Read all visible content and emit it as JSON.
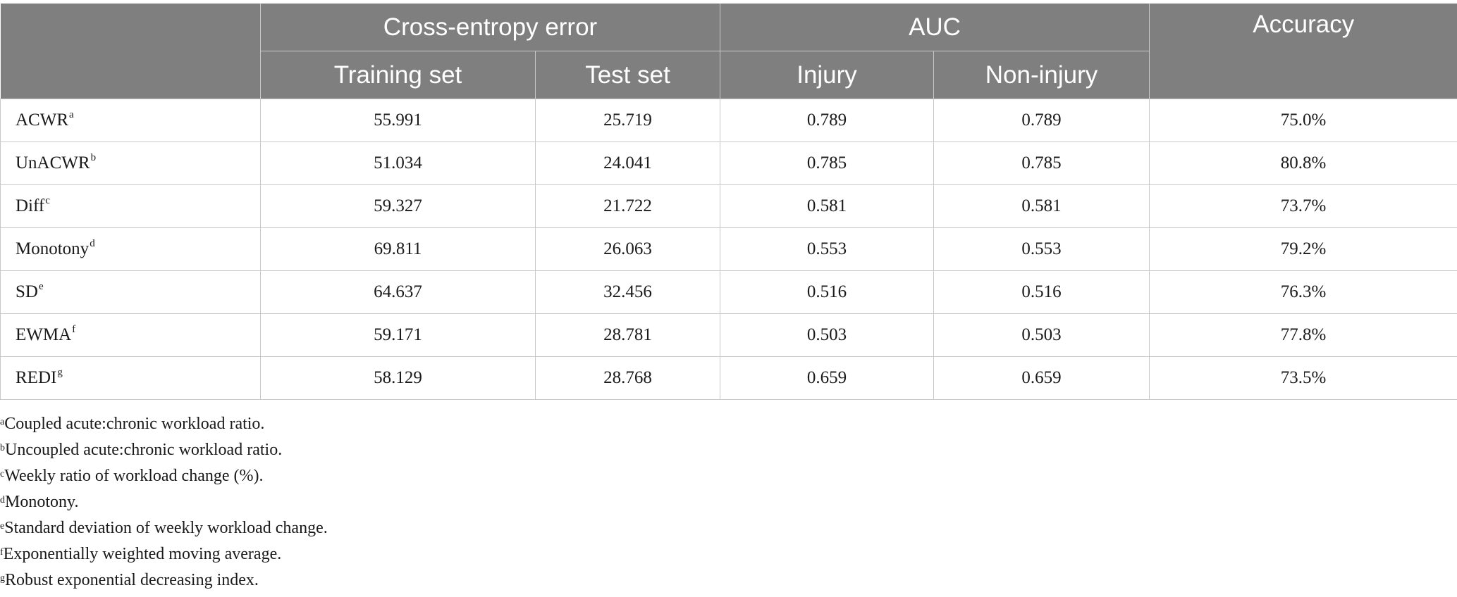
{
  "table": {
    "group_headers": {
      "cross_entropy": "Cross-entropy error",
      "auc": "AUC",
      "accuracy": "Accuracy"
    },
    "sub_headers": {
      "training_set": "Training set",
      "test_set": "Test set",
      "injury": "Injury",
      "non_injury": "Non-injury"
    },
    "rows": [
      {
        "label": "ACWR",
        "sup": "a",
        "training": "55.991",
        "test": "25.719",
        "injury": "0.789",
        "non_injury": "0.789",
        "accuracy": "75.0%"
      },
      {
        "label": "UnACWR",
        "sup": "b",
        "training": "51.034",
        "test": "24.041",
        "injury": "0.785",
        "non_injury": "0.785",
        "accuracy": "80.8%"
      },
      {
        "label": "Diff",
        "sup": "c",
        "training": "59.327",
        "test": "21.722",
        "injury": "0.581",
        "non_injury": "0.581",
        "accuracy": "73.7%"
      },
      {
        "label": "Monotony",
        "sup": "d",
        "training": "69.811",
        "test": "26.063",
        "injury": "0.553",
        "non_injury": "0.553",
        "accuracy": "79.2%"
      },
      {
        "label": "SD",
        "sup": "e",
        "training": "64.637",
        "test": "32.456",
        "injury": "0.516",
        "non_injury": "0.516",
        "accuracy": "76.3%"
      },
      {
        "label": "EWMA",
        "sup": "f",
        "training": "59.171",
        "test": "28.781",
        "injury": "0.503",
        "non_injury": "0.503",
        "accuracy": "77.8%"
      },
      {
        "label": "REDI",
        "sup": "g",
        "training": "58.129",
        "test": "28.768",
        "injury": "0.659",
        "non_injury": "0.659",
        "accuracy": "73.5%"
      }
    ]
  },
  "footnotes": [
    {
      "mark": "a",
      "text": "Coupled acute:chronic workload ratio."
    },
    {
      "mark": "b",
      "text": "Uncoupled acute:chronic workload ratio."
    },
    {
      "mark": "c",
      "text": "Weekly ratio of workload change (%)."
    },
    {
      "mark": "d",
      "text": "Monotony."
    },
    {
      "mark": "e",
      "text": "Standard deviation of weekly workload change."
    },
    {
      "mark": "f",
      "text": "Exponentially weighted moving average."
    },
    {
      "mark": "g",
      "text": "Robust exponential decreasing index."
    }
  ]
}
